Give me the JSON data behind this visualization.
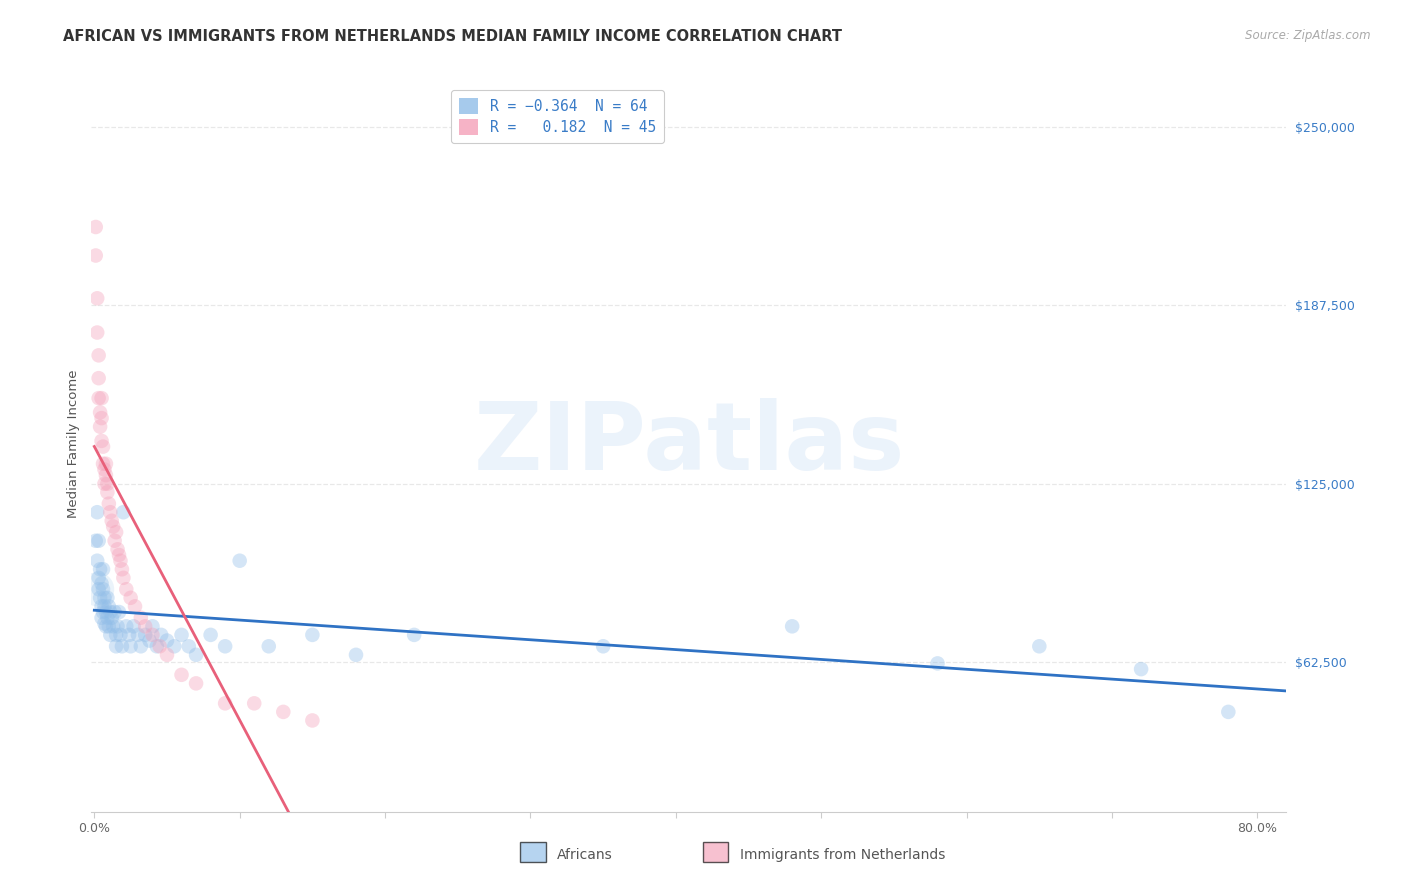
{
  "title": "AFRICAN VS IMMIGRANTS FROM NETHERLANDS MEDIAN FAMILY INCOME CORRELATION CHART",
  "source": "Source: ZipAtlas.com",
  "ylabel": "Median Family Income",
  "ytick_values": [
    62500,
    125000,
    187500,
    250000
  ],
  "ytick_labels": [
    "$62,500",
    "$125,000",
    "$187,500",
    "$250,000"
  ],
  "ymin": 10000,
  "ymax": 268000,
  "xmin": -0.002,
  "xmax": 0.82,
  "watermark_text": "ZIPatlas",
  "africans_color": "#90bde8",
  "netherlands_color": "#f4a0b8",
  "africans_line_color": "#2f72c4",
  "netherlands_line_color": "#e8607a",
  "background_color": "#ffffff",
  "grid_color": "#e8e8e8",
  "title_fontsize": 10.5,
  "axis_label_fontsize": 9.5,
  "tick_fontsize": 9,
  "marker_size": 110,
  "marker_alpha": 0.38,
  "line_width": 2.0,
  "africans_x": [
    0.001,
    0.002,
    0.002,
    0.003,
    0.003,
    0.003,
    0.004,
    0.004,
    0.005,
    0.005,
    0.005,
    0.006,
    0.006,
    0.006,
    0.007,
    0.007,
    0.007,
    0.008,
    0.008,
    0.009,
    0.009,
    0.01,
    0.01,
    0.011,
    0.011,
    0.012,
    0.013,
    0.014,
    0.015,
    0.015,
    0.016,
    0.017,
    0.018,
    0.019,
    0.02,
    0.022,
    0.024,
    0.025,
    0.027,
    0.03,
    0.032,
    0.035,
    0.038,
    0.04,
    0.043,
    0.046,
    0.05,
    0.055,
    0.06,
    0.065,
    0.07,
    0.08,
    0.09,
    0.1,
    0.12,
    0.15,
    0.18,
    0.22,
    0.35,
    0.48,
    0.58,
    0.65,
    0.72,
    0.78
  ],
  "africans_y": [
    105000,
    115000,
    98000,
    92000,
    88000,
    105000,
    95000,
    85000,
    90000,
    82000,
    78000,
    88000,
    80000,
    95000,
    82000,
    76000,
    85000,
    80000,
    75000,
    85000,
    78000,
    82000,
    75000,
    80000,
    72000,
    78000,
    75000,
    80000,
    72000,
    68000,
    75000,
    80000,
    72000,
    68000,
    115000,
    75000,
    72000,
    68000,
    75000,
    72000,
    68000,
    72000,
    70000,
    75000,
    68000,
    72000,
    70000,
    68000,
    72000,
    68000,
    65000,
    72000,
    68000,
    98000,
    68000,
    72000,
    65000,
    72000,
    68000,
    75000,
    62000,
    68000,
    60000,
    45000
  ],
  "netherlands_x": [
    0.001,
    0.001,
    0.002,
    0.002,
    0.003,
    0.003,
    0.003,
    0.004,
    0.004,
    0.005,
    0.005,
    0.005,
    0.006,
    0.006,
    0.007,
    0.007,
    0.008,
    0.008,
    0.009,
    0.009,
    0.01,
    0.011,
    0.012,
    0.013,
    0.014,
    0.015,
    0.016,
    0.017,
    0.018,
    0.019,
    0.02,
    0.022,
    0.025,
    0.028,
    0.032,
    0.035,
    0.04,
    0.045,
    0.05,
    0.06,
    0.07,
    0.09,
    0.11,
    0.13,
    0.15
  ],
  "netherlands_y": [
    215000,
    205000,
    178000,
    190000,
    162000,
    155000,
    170000,
    150000,
    145000,
    148000,
    155000,
    140000,
    138000,
    132000,
    130000,
    125000,
    132000,
    128000,
    125000,
    122000,
    118000,
    115000,
    112000,
    110000,
    105000,
    108000,
    102000,
    100000,
    98000,
    95000,
    92000,
    88000,
    85000,
    82000,
    78000,
    75000,
    72000,
    68000,
    65000,
    58000,
    55000,
    48000,
    48000,
    45000,
    42000
  ]
}
